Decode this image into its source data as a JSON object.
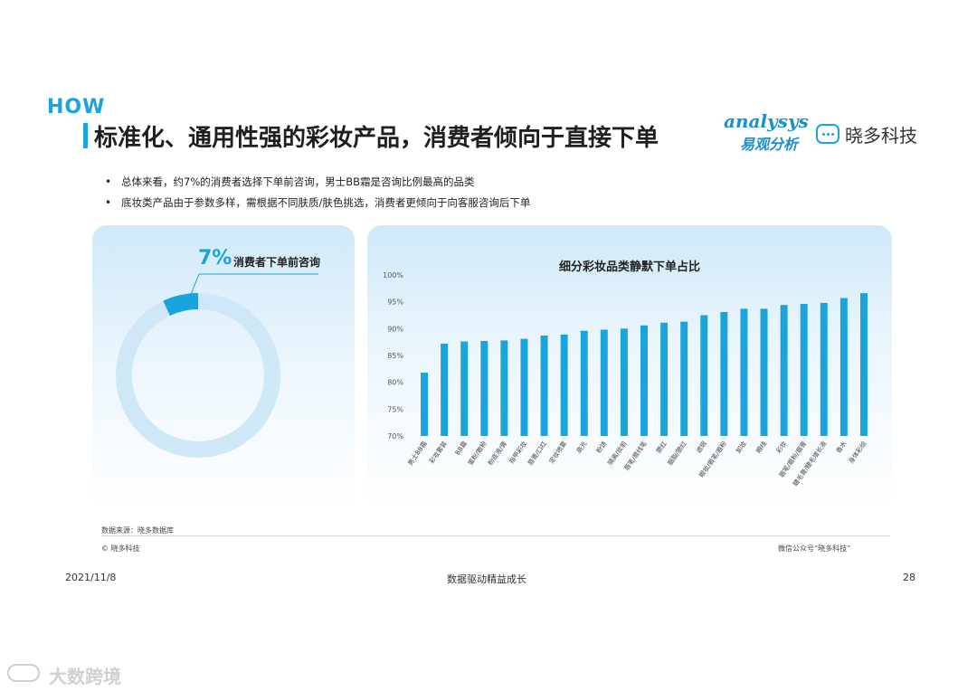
{
  "header": {
    "how": "HOW",
    "title": "标准化、通用性强的彩妆产品，消费者倾向于直接下单",
    "logo_analysys_main": "analysys",
    "logo_analysys_cn": "易观分析",
    "logo_xd": "晓多科技"
  },
  "bullets": [
    "总体来看，约7%的消费者选择下单前咨询，男士BB霜是咨询比例最高的品类",
    "底妆类产品由于参数多样，需根据不同肤质/肤色挑选，消费者更倾向于向客服咨询后下单"
  ],
  "donut": {
    "percent_label": "7%",
    "label": "消费者下单前咨询",
    "value": 0.07,
    "highlight_color": "#1aa3dc",
    "ring_color": "#cfe8f7"
  },
  "chart_data": {
    "type": "bar",
    "title": "细分彩妆品类静默下单占比",
    "categories": [
      "男士BB霜",
      "彩妆套装",
      "BB霜",
      "蜜粉/散粉",
      "粉底液/膏",
      "指甲彩妆",
      "唇膏/口红",
      "定妆喷雾",
      "高光",
      "粉饼",
      "隔离/妆前",
      "唇笔/唇线笔",
      "腮红",
      "胭脂/腮红",
      "遮瑕",
      "眼妆/眉笔/眉粉",
      "卸妆",
      "眼线",
      "彩妆",
      "眉笔/眉粉/眉膏",
      "睫毛膏/睫毛增长液",
      "香水",
      "身体彩绘"
    ],
    "values": [
      81.8,
      87.2,
      87.6,
      87.7,
      87.8,
      88.1,
      88.7,
      88.9,
      89.6,
      89.8,
      90.0,
      90.6,
      91.1,
      91.3,
      92.5,
      93.1,
      93.7,
      93.7,
      94.4,
      94.6,
      94.8,
      95.7,
      96.6
    ],
    "ylim": [
      70,
      100
    ],
    "yticks": [
      "70%",
      "75%",
      "80%",
      "85%",
      "90%",
      "95%",
      "100%"
    ],
    "bar_color": "#1aa3dc",
    "grid": false
  },
  "footer": {
    "source": "数据来源：晓多数据库",
    "copyright": "© 晓多科技",
    "wechat": "微信公众号“晓多科技”",
    "date": "2021/11/8",
    "center": "数据驱动精益成长",
    "page": "28"
  },
  "watermark": "大数跨境"
}
